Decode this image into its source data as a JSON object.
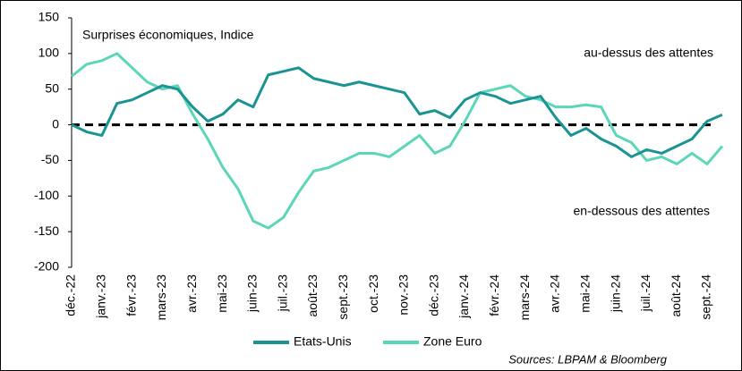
{
  "chart_data": {
    "type": "line",
    "title": "Surprises économiques, Indice",
    "annotations": [
      "au-dessus des attentes",
      "en-dessous des attentes"
    ],
    "source": "Sources: LBPAM & Bloomberg",
    "categories": [
      "déc.-22",
      null,
      "janv.-23",
      null,
      "févr.-23",
      null,
      "mars-23",
      null,
      "avr.-23",
      null,
      "mai-23",
      null,
      "juin-23",
      null,
      "juil.-23",
      null,
      "août-23",
      null,
      "sept.-23",
      null,
      "oct.-23",
      null,
      "nov.-23",
      null,
      "déc.-23",
      null,
      "janv.-24",
      null,
      "févr.-24",
      null,
      "mars-24",
      null,
      "avr.-24",
      null,
      "mai-24",
      null,
      "juin-24",
      null,
      "juil.-24",
      null,
      "août-24",
      null,
      "sept.-24",
      null
    ],
    "series": [
      {
        "name": "Etats-Unis",
        "color": "#1a9393",
        "values": [
          0,
          -10,
          -15,
          30,
          35,
          45,
          55,
          50,
          25,
          5,
          15,
          35,
          25,
          70,
          75,
          80,
          65,
          60,
          55,
          60,
          55,
          50,
          45,
          15,
          20,
          10,
          35,
          45,
          40,
          30,
          35,
          40,
          10,
          -15,
          -5,
          -20,
          -30,
          -45,
          -35,
          -40,
          -30,
          -20,
          5,
          14
        ]
      },
      {
        "name": "Zone Euro",
        "color": "#5cd6b8",
        "values": [
          68,
          85,
          90,
          100,
          80,
          60,
          50,
          55,
          15,
          -20,
          -60,
          -90,
          -135,
          -145,
          -130,
          -95,
          -65,
          -60,
          -50,
          -40,
          -40,
          -45,
          -30,
          -15,
          -40,
          -30,
          5,
          45,
          50,
          55,
          40,
          35,
          25,
          25,
          28,
          25,
          -15,
          -25,
          -50,
          -45,
          -55,
          -40,
          -55,
          -30
        ]
      }
    ],
    "reference_line": 0,
    "ylim": [
      -200,
      150
    ],
    "yticks": [
      -200,
      -150,
      -100,
      -50,
      0,
      50,
      100,
      150
    ],
    "legend": "bottom"
  }
}
